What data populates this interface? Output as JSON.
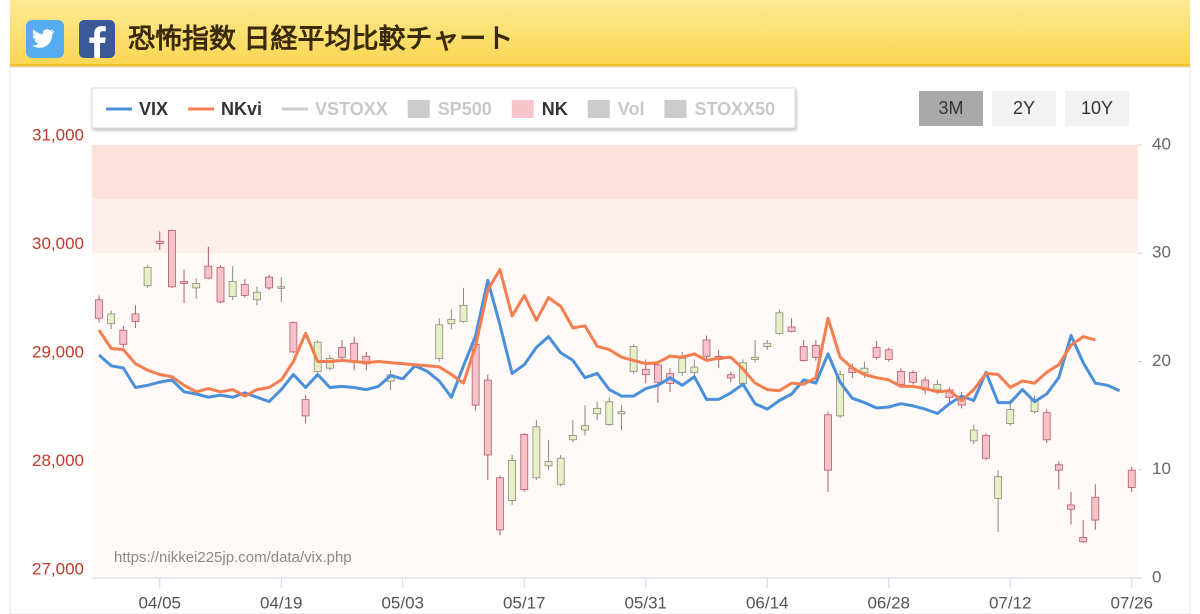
{
  "header": {
    "title": "恐怖指数 日経平均比較チャート"
  },
  "chart_data": {
    "type": "combo",
    "categories": [
      null,
      null,
      null,
      null,
      null,
      "04/05",
      null,
      null,
      null,
      null,
      null,
      null,
      null,
      null,
      null,
      "04/19",
      null,
      null,
      null,
      null,
      null,
      null,
      null,
      null,
      null,
      "05/03",
      null,
      null,
      null,
      null,
      null,
      null,
      null,
      null,
      null,
      "05/17",
      null,
      null,
      null,
      null,
      null,
      null,
      null,
      null,
      null,
      "05/31",
      null,
      null,
      null,
      null,
      null,
      null,
      null,
      null,
      null,
      "06/14",
      null,
      null,
      null,
      null,
      null,
      null,
      null,
      null,
      null,
      "06/28",
      null,
      null,
      null,
      null,
      null,
      null,
      null,
      null,
      null,
      "07/12",
      null,
      null,
      null,
      null,
      null,
      null,
      null,
      null,
      null,
      "07/26"
    ],
    "ylim": [
      27000,
      31000
    ],
    "yticks": [
      {
        "value": 27000,
        "label": "27,000"
      },
      {
        "value": 28000,
        "label": "28,000"
      },
      {
        "value": 29000,
        "label": "29,000"
      },
      {
        "value": 30000,
        "label": "30,000"
      },
      {
        "value": 31000,
        "label": "31,000"
      }
    ],
    "y2lim": [
      0,
      40
    ],
    "y2ticks": [
      0,
      10,
      20,
      30,
      40
    ],
    "y_axis_color": "#c0392b",
    "y2_bands": [
      {
        "from": 35,
        "to": 40,
        "color": "#fde2dc"
      },
      {
        "from": 30,
        "to": 35,
        "color": "#fdeeeb"
      },
      {
        "from": 0,
        "to": 30,
        "color": "#fffaf8"
      }
    ],
    "watermark": "https://nikkei225jp.com/data/vix.php",
    "range_buttons": [
      {
        "label": "3M",
        "active": true
      },
      {
        "label": "2Y",
        "active": false
      },
      {
        "label": "10Y",
        "active": false
      }
    ],
    "up_color": "#e7efc6",
    "down_color": "#f6c3cb",
    "series": [
      {
        "name": "VIX",
        "type": "line",
        "marker": "line",
        "visible": true,
        "axis": "y2",
        "color": "#4a8fd9",
        "values": [
          20.6,
          19.6,
          19.4,
          17.6,
          17.8,
          18.1,
          18.3,
          17.2,
          17.0,
          16.7,
          16.9,
          16.7,
          17.1,
          16.7,
          16.3,
          17.4,
          18.8,
          17.6,
          18.8,
          17.6,
          17.7,
          17.6,
          17.4,
          17.7,
          18.7,
          18.4,
          19.6,
          19.1,
          18.2,
          16.7,
          19.6,
          22.4,
          27.5,
          23.4,
          18.9,
          19.7,
          21.3,
          22.3,
          20.8,
          20.1,
          18.5,
          18.9,
          17.4,
          16.8,
          16.8,
          17.5,
          17.8,
          18.5,
          17.8,
          18.6,
          16.5,
          16.5,
          17.1,
          17.9,
          16.1,
          15.6,
          16.4,
          17.0,
          18.3,
          18.0,
          20.7,
          18.1,
          16.6,
          16.2,
          15.7,
          15.8,
          16.1,
          15.9,
          15.6,
          15.2,
          16.1,
          16.8,
          16.4,
          19.0,
          16.2,
          16.2,
          17.4,
          16.3,
          17.0,
          18.5,
          22.4,
          19.9,
          18.0,
          17.8,
          17.3,
          null
        ]
      },
      {
        "name": "NKvi",
        "type": "line",
        "marker": "line",
        "visible": true,
        "axis": "y2",
        "color": "#f47e4f",
        "values": [
          22.9,
          21.2,
          21.1,
          19.8,
          19.2,
          18.8,
          18.6,
          17.8,
          17.2,
          17.5,
          17.2,
          17.4,
          16.8,
          17.4,
          17.6,
          18.3,
          20.0,
          22.6,
          20.0,
          20.0,
          20.1,
          20.0,
          19.9,
          20.0,
          19.9,
          19.8,
          19.7,
          19.6,
          19.5,
          18.8,
          18.0,
          21.5,
          26.6,
          28.5,
          24.2,
          26.1,
          23.8,
          25.9,
          25.1,
          23.1,
          23.3,
          21.4,
          21.1,
          20.4,
          20.1,
          19.8,
          19.9,
          20.5,
          20.4,
          20.7,
          20.1,
          20.3,
          20.4,
          19.3,
          18.0,
          17.4,
          17.3,
          18.0,
          17.9,
          18.5,
          24.0,
          20.4,
          19.4,
          18.8,
          18.5,
          18.3,
          17.7,
          17.7,
          17.5,
          17.2,
          17.3,
          16.4,
          17.4,
          18.9,
          18.8,
          17.6,
          18.2,
          18.0,
          19.0,
          19.7,
          21.5,
          22.3,
          22.0,
          null,
          null,
          null
        ]
      },
      {
        "name": "VSTOXX",
        "type": "line",
        "marker": "line",
        "visible": false,
        "color": "#cccccc"
      },
      {
        "name": "SP500",
        "type": "candlestick",
        "marker": "box",
        "visible": false,
        "color": "#cccccc"
      },
      {
        "name": "NK",
        "type": "candlestick",
        "marker": "box",
        "visible": true,
        "axis": "y",
        "color": "#f7c6cd",
        "open": [
          29490,
          29270,
          29210,
          29360,
          29620,
          30030,
          30130,
          29660,
          29600,
          29800,
          29790,
          29520,
          29630,
          29490,
          29700,
          29600,
          29280,
          28570,
          28830,
          28860,
          29050,
          29090,
          28970,
          null,
          28740,
          null,
          null,
          null,
          28950,
          29270,
          29290,
          29080,
          28750,
          27850,
          27640,
          28250,
          27850,
          27960,
          27790,
          28200,
          28290,
          28440,
          28340,
          28440,
          28830,
          28850,
          28890,
          28810,
          28820,
          28820,
          29120,
          28970,
          28800,
          28720,
          28940,
          29060,
          29180,
          29240,
          29060,
          29070,
          28430,
          28420,
          28860,
          28820,
          29050,
          29030,
          28830,
          28820,
          28750,
          28660,
          28660,
          28590,
          28190,
          28240,
          27660,
          28350,
          null,
          28460,
          28450,
          27970,
          27600,
          27300,
          27670,
          null,
          null,
          27920
        ],
        "high": [
          29530,
          29390,
          29250,
          29440,
          29810,
          30120,
          30140,
          29770,
          29690,
          29980,
          29810,
          29800,
          29680,
          29610,
          29720,
          29700,
          29290,
          28610,
          29120,
          28980,
          29120,
          29150,
          29010,
          null,
          28840,
          null,
          null,
          null,
          29320,
          29400,
          29600,
          29120,
          28800,
          27870,
          28060,
          28260,
          28380,
          28200,
          28060,
          28380,
          28520,
          28550,
          28590,
          28520,
          29080,
          28940,
          28920,
          28860,
          29010,
          28940,
          29160,
          29030,
          28830,
          28940,
          29120,
          29120,
          29400,
          29320,
          29120,
          29120,
          28460,
          28840,
          28900,
          28920,
          29110,
          29050,
          28860,
          28840,
          28780,
          28750,
          28680,
          28640,
          28340,
          28260,
          27920,
          28570,
          null,
          28610,
          28480,
          28000,
          27720,
          27460,
          27790,
          null,
          null,
          27950
        ],
        "low": [
          29280,
          29220,
          29050,
          29230,
          29600,
          29950,
          29600,
          29460,
          29500,
          29680,
          29460,
          29490,
          29510,
          29440,
          29580,
          29470,
          29000,
          28350,
          28820,
          28840,
          28920,
          28840,
          28840,
          null,
          28660,
          null,
          null,
          null,
          28920,
          29220,
          29280,
          28470,
          27830,
          27320,
          27600,
          27720,
          27830,
          27920,
          27770,
          28180,
          28240,
          28380,
          28330,
          28290,
          28810,
          28720,
          28540,
          28640,
          28790,
          28750,
          28940,
          28860,
          28730,
          28700,
          28910,
          29030,
          29170,
          29190,
          28920,
          28930,
          27720,
          28400,
          28770,
          28770,
          28940,
          28920,
          28690,
          28710,
          28620,
          28620,
          28520,
          28490,
          28160,
          28010,
          27350,
          28330,
          null,
          28440,
          28170,
          27740,
          27420,
          27250,
          27370,
          null,
          null,
          27720
        ],
        "close": [
          29320,
          29360,
          29080,
          29290,
          29790,
          30010,
          29610,
          29640,
          29640,
          29690,
          29470,
          29660,
          29530,
          29560,
          29600,
          29610,
          29010,
          28420,
          29100,
          28950,
          28960,
          28930,
          28900,
          null,
          28800,
          null,
          null,
          null,
          29260,
          29310,
          29440,
          28520,
          28060,
          27370,
          28010,
          27740,
          28320,
          28000,
          28030,
          28240,
          28330,
          28490,
          28550,
          28460,
          29060,
          28800,
          28730,
          28720,
          28950,
          28870,
          28970,
          28940,
          28770,
          28910,
          28960,
          29090,
          29370,
          29200,
          28930,
          28960,
          27920,
          28800,
          28820,
          28860,
          28960,
          28940,
          28710,
          28730,
          28660,
          28710,
          28590,
          28520,
          28290,
          28030,
          27860,
          28480,
          null,
          28570,
          28200,
          27920,
          27560,
          27260,
          27460,
          null,
          null,
          27760
        ]
      },
      {
        "name": "Vol",
        "type": "bar",
        "marker": "box",
        "visible": false,
        "color": "#cccccc"
      },
      {
        "name": "STOXX50",
        "type": "line",
        "marker": "box",
        "visible": false,
        "color": "#cccccc"
      }
    ]
  }
}
